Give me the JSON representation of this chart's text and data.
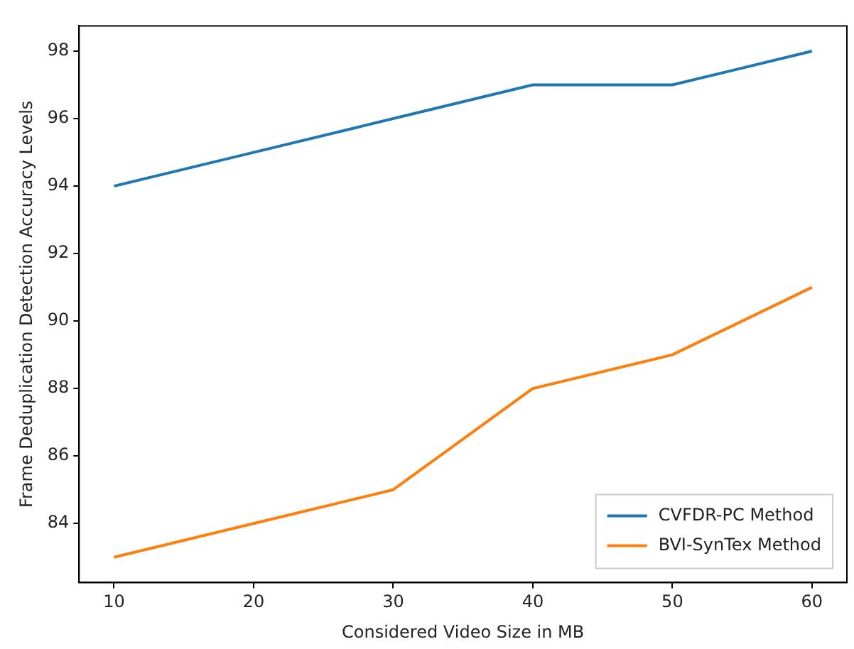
{
  "chart_data": {
    "type": "line",
    "xlabel": "Considered Video Size in MB",
    "ylabel": "Frame Deduplication Detection Accuracy Levels",
    "x": [
      10,
      20,
      30,
      40,
      50,
      60
    ],
    "series": [
      {
        "name": "CVFDR-PC Method",
        "color": "#1f77b4",
        "values": [
          94,
          95,
          96,
          97,
          97,
          98
        ]
      },
      {
        "name": "BVI-SynTex Method",
        "color": "#ff7f0e",
        "values": [
          83,
          84,
          85,
          88,
          89,
          91
        ]
      }
    ],
    "xlim": [
      7.5,
      62.5
    ],
    "xticks": [
      10,
      20,
      30,
      40,
      50,
      60
    ],
    "ylim": [
      82.25,
      98.75
    ],
    "yticks": [
      84,
      86,
      88,
      90,
      92,
      94,
      96,
      98
    ],
    "grid": false,
    "legend": "bottom right",
    "marker": "none",
    "line_style": "solid"
  }
}
